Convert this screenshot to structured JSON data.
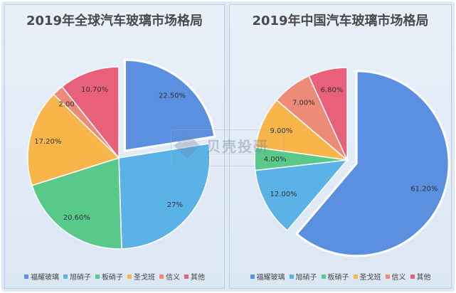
{
  "watermark": {
    "text": "贝壳投研"
  },
  "chart_data": [
    {
      "type": "pie",
      "title": "2019年全球汽车玻璃市场格局",
      "categories": [
        "福耀玻璃",
        "旭硝子",
        "板硝子",
        "圣戈班",
        "信义",
        "其他"
      ],
      "values": [
        22.5,
        27,
        20.6,
        17.2,
        2.0,
        10.7
      ],
      "labels": [
        "22.50%",
        "27%",
        "20.60%",
        "17.20%",
        "2.00%",
        "10.70%"
      ],
      "exploded": [
        "福耀玻璃"
      ],
      "colors": [
        "#5b8fe0",
        "#5ab2e6",
        "#59c98a",
        "#f8b64a",
        "#ee8a78",
        "#e9607a"
      ],
      "legend": "bottom"
    },
    {
      "type": "pie",
      "title": "2019年中国汽车玻璃市场格局",
      "categories": [
        "福耀玻璃",
        "旭硝子",
        "板硝子",
        "圣戈班",
        "信义",
        "其他"
      ],
      "values": [
        61.2,
        12.0,
        4.0,
        9.0,
        7.0,
        6.8
      ],
      "labels": [
        "61.20%",
        "12.00%",
        "4.00%",
        "9.00%",
        "7.00%",
        "6.80%"
      ],
      "exploded": [
        "福耀玻璃"
      ],
      "colors": [
        "#5b8fe0",
        "#5ab2e6",
        "#59c98a",
        "#f8b64a",
        "#ee8a78",
        "#e9607a"
      ],
      "legend": "bottom"
    }
  ]
}
